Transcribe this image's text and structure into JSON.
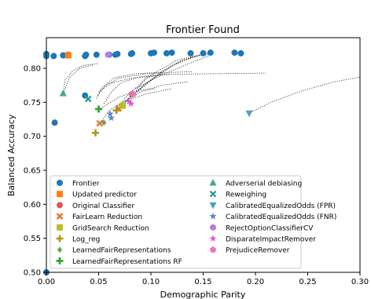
{
  "chart_data": {
    "type": "scatter",
    "title": "Frontier Found",
    "xlabel": "Demographic Parity",
    "ylabel": "Balanced Accuracy",
    "xlim": [
      0.0,
      0.3
    ],
    "ylim": [
      0.5,
      0.845
    ],
    "xticks": [
      0.0,
      0.05,
      0.1,
      0.15,
      0.2,
      0.25,
      0.3
    ],
    "xtick_labels": [
      "0.00",
      "0.05",
      "0.10",
      "0.15",
      "0.20",
      "0.25",
      "0.30"
    ],
    "yticks": [
      0.5,
      0.55,
      0.6,
      0.65,
      0.7,
      0.75,
      0.8
    ],
    "ytick_labels": [
      "0.50",
      "0.55",
      "0.60",
      "0.65",
      "0.70",
      "0.75",
      "0.80"
    ],
    "grid": false,
    "legend_placement": "lower-left, two columns",
    "paths": [
      [
        [
          0.048,
          0.755
        ],
        [
          0.052,
          0.77
        ],
        [
          0.065,
          0.786
        ],
        [
          0.085,
          0.792
        ],
        [
          0.11,
          0.794
        ]
      ],
      [
        [
          0.049,
          0.76
        ],
        [
          0.058,
          0.777
        ],
        [
          0.08,
          0.785
        ],
        [
          0.105,
          0.789
        ],
        [
          0.118,
          0.791
        ]
      ],
      [
        [
          0.05,
          0.765
        ],
        [
          0.068,
          0.785
        ],
        [
          0.095,
          0.792
        ],
        [
          0.12,
          0.794
        ],
        [
          0.14,
          0.795
        ]
      ],
      [
        [
          0.016,
          0.763
        ],
        [
          0.018,
          0.783
        ],
        [
          0.025,
          0.796
        ],
        [
          0.035,
          0.804
        ],
        [
          0.05,
          0.807
        ]
      ],
      [
        [
          0.017,
          0.765
        ],
        [
          0.022,
          0.786
        ],
        [
          0.032,
          0.8
        ],
        [
          0.045,
          0.805
        ]
      ],
      [
        [
          0.055,
          0.748
        ],
        [
          0.062,
          0.765
        ],
        [
          0.072,
          0.779
        ],
        [
          0.088,
          0.787
        ],
        [
          0.105,
          0.791
        ]
      ],
      [
        [
          0.052,
          0.72
        ],
        [
          0.06,
          0.738
        ],
        [
          0.075,
          0.752
        ],
        [
          0.095,
          0.762
        ],
        [
          0.12,
          0.77
        ]
      ],
      [
        [
          0.052,
          0.741
        ],
        [
          0.07,
          0.758
        ],
        [
          0.09,
          0.768
        ],
        [
          0.105,
          0.77
        ]
      ],
      [
        [
          0.065,
          0.738
        ],
        [
          0.08,
          0.764
        ],
        [
          0.1,
          0.79
        ],
        [
          0.125,
          0.812
        ],
        [
          0.15,
          0.821
        ],
        [
          0.16,
          0.823
        ]
      ],
      [
        [
          0.068,
          0.74
        ],
        [
          0.09,
          0.77
        ],
        [
          0.11,
          0.795
        ],
        [
          0.13,
          0.812
        ],
        [
          0.15,
          0.82
        ],
        [
          0.158,
          0.822
        ]
      ],
      [
        [
          0.07,
          0.745
        ],
        [
          0.095,
          0.778
        ],
        [
          0.118,
          0.802
        ],
        [
          0.14,
          0.817
        ],
        [
          0.16,
          0.822
        ]
      ],
      [
        [
          0.075,
          0.75
        ],
        [
          0.09,
          0.765
        ],
        [
          0.11,
          0.775
        ],
        [
          0.135,
          0.78
        ]
      ],
      [
        [
          0.078,
          0.755
        ],
        [
          0.1,
          0.782
        ],
        [
          0.125,
          0.808
        ],
        [
          0.15,
          0.821
        ]
      ],
      [
        [
          0.083,
          0.762
        ],
        [
          0.095,
          0.786
        ],
        [
          0.11,
          0.791
        ],
        [
          0.16,
          0.792
        ],
        [
          0.21,
          0.793
        ]
      ],
      [
        [
          0.085,
          0.77
        ],
        [
          0.11,
          0.79
        ],
        [
          0.135,
          0.806
        ],
        [
          0.155,
          0.818
        ]
      ],
      [
        [
          0.195,
          0.735
        ],
        [
          0.215,
          0.75
        ],
        [
          0.245,
          0.767
        ],
        [
          0.275,
          0.78
        ],
        [
          0.3,
          0.787
        ]
      ]
    ],
    "series": [
      {
        "name": "Frontier",
        "marker": "circle",
        "color": "#1f77b4",
        "points": [
          [
            0.0,
            0.5
          ],
          [
            0.0,
            0.818
          ],
          [
            0.0,
            0.821
          ],
          [
            0.007,
            0.818
          ],
          [
            0.008,
            0.72
          ],
          [
            0.016,
            0.819
          ],
          [
            0.021,
            0.82
          ],
          [
            0.037,
            0.818
          ],
          [
            0.038,
            0.82
          ],
          [
            0.048,
            0.82
          ],
          [
            0.06,
            0.82
          ],
          [
            0.066,
            0.82
          ],
          [
            0.068,
            0.821
          ],
          [
            0.081,
            0.821
          ],
          [
            0.082,
            0.822
          ],
          [
            0.1,
            0.822
          ],
          [
            0.103,
            0.823
          ],
          [
            0.115,
            0.822
          ],
          [
            0.12,
            0.823
          ],
          [
            0.138,
            0.822
          ],
          [
            0.15,
            0.822
          ],
          [
            0.157,
            0.823
          ],
          [
            0.18,
            0.823
          ],
          [
            0.186,
            0.822
          ],
          [
            0.037,
            0.76
          ]
        ]
      },
      {
        "name": "Updated predictor",
        "marker": "square",
        "color": "#ff7f0e",
        "points": [
          [
            0.021,
            0.819
          ]
        ]
      },
      {
        "name": "Original Classifier",
        "marker": "circle",
        "color": "#e45756",
        "points": [
          [
            0.082,
            0.762
          ]
        ]
      },
      {
        "name": "FairLearn Reduction",
        "marker": "x",
        "color": "#e0772b",
        "points": [
          [
            0.051,
            0.719
          ],
          [
            0.069,
            0.741
          ]
        ]
      },
      {
        "name": "GridSearch Reduction",
        "marker": "square",
        "color": "#bcbd22",
        "points": [
          [
            0.073,
            0.745
          ]
        ]
      },
      {
        "name": "Log_reg",
        "marker": "plus",
        "color": "#a89a1a",
        "points": [
          [
            0.047,
            0.705
          ],
          [
            0.067,
            0.738
          ]
        ]
      },
      {
        "name": "LearnedFairRepresentations",
        "marker": "diamond",
        "color": "#6aa84f",
        "points": [
          [
            0.055,
            0.72
          ]
        ]
      },
      {
        "name": "LearnedFairRepresentations RF",
        "marker": "plus",
        "color": "#2ca02c",
        "points": [
          [
            0.05,
            0.74
          ]
        ]
      },
      {
        "name": "Adverserial debiasing",
        "marker": "triangle-up",
        "color": "#44aa88",
        "points": [
          [
            0.016,
            0.763
          ]
        ]
      },
      {
        "name": "Reweighing",
        "marker": "x",
        "color": "#2a9d8f",
        "points": [
          [
            0.04,
            0.755
          ]
        ]
      },
      {
        "name": "CalibratedEqualizedOdds (FPR)",
        "marker": "triangle-down",
        "color": "#4aa3c8",
        "points": [
          [
            0.194,
            0.734
          ]
        ]
      },
      {
        "name": "CalibratedEqualizedOdds (FNR)",
        "marker": "star",
        "color": "#5b84c4",
        "points": [
          [
            0.061,
            0.733
          ],
          [
            0.062,
            0.727
          ]
        ]
      },
      {
        "name": "RejectOptionClassifierCV",
        "marker": "circle",
        "color": "#b57edc",
        "points": [
          [
            0.059,
            0.82
          ]
        ]
      },
      {
        "name": "DisparateImpactRemover",
        "marker": "star",
        "color": "#e655d4",
        "points": [
          [
            0.079,
            0.751
          ],
          [
            0.081,
            0.748
          ]
        ]
      },
      {
        "name": "PrejudiceRemover",
        "marker": "pentagon",
        "color": "#e377c2",
        "points": [
          [
            0.083,
            0.762
          ]
        ]
      }
    ]
  }
}
